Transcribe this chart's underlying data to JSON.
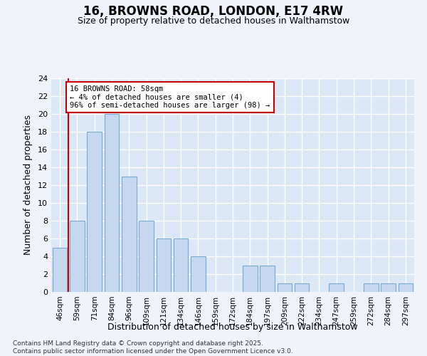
{
  "title": "16, BROWNS ROAD, LONDON, E17 4RW",
  "subtitle": "Size of property relative to detached houses in Walthamstow",
  "xlabel": "Distribution of detached houses by size in Walthamstow",
  "ylabel": "Number of detached properties",
  "bins": [
    "46sqm",
    "59sqm",
    "71sqm",
    "84sqm",
    "96sqm",
    "109sqm",
    "121sqm",
    "134sqm",
    "146sqm",
    "159sqm",
    "172sqm",
    "184sqm",
    "197sqm",
    "209sqm",
    "222sqm",
    "234sqm",
    "247sqm",
    "259sqm",
    "272sqm",
    "284sqm",
    "297sqm"
  ],
  "values": [
    5,
    8,
    18,
    20,
    13,
    8,
    6,
    6,
    4,
    0,
    0,
    3,
    3,
    1,
    1,
    0,
    1,
    0,
    1,
    1,
    1
  ],
  "bar_color": "#c5d8f0",
  "bar_edge_color": "#7aaad0",
  "background_color": "#dce8f5",
  "grid_color": "#ffffff",
  "property_label": "16 BROWNS ROAD: 58sqm",
  "pct_smaller": 4,
  "pct_larger": 96,
  "n_smaller": 4,
  "n_larger": 98,
  "red_line_x": 0.5,
  "annotation_box_color": "#cc0000",
  "ylim": [
    0,
    24
  ],
  "yticks": [
    0,
    2,
    4,
    6,
    8,
    10,
    12,
    14,
    16,
    18,
    20,
    22,
    24
  ],
  "footer": "Contains HM Land Registry data © Crown copyright and database right 2025.\nContains public sector information licensed under the Open Government Licence v3.0.",
  "bg_color": "#f0f4fa"
}
